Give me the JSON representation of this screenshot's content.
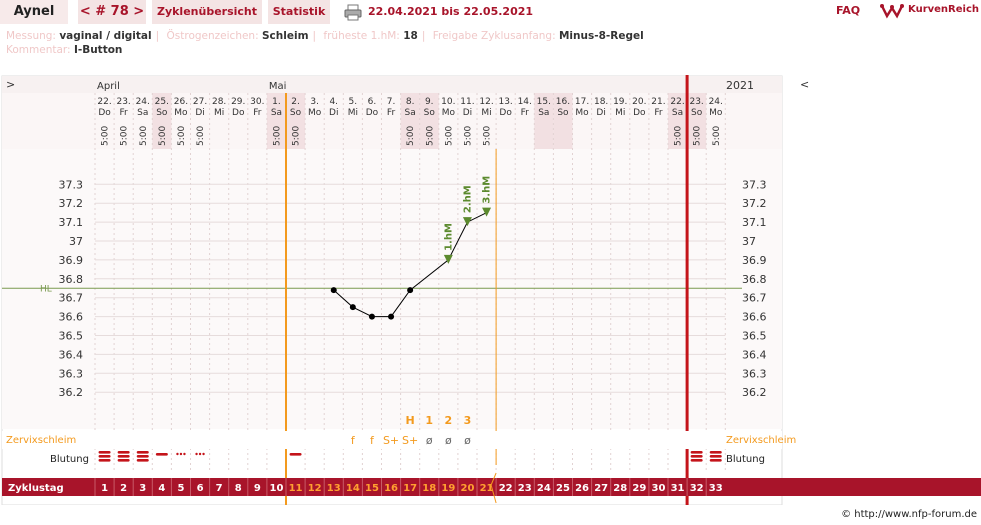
{
  "user": "Aynel",
  "cycle_number": "< # 78 >",
  "nav": {
    "overview": "Zyklenübersicht",
    "stats": "Statistik"
  },
  "date_range": "22.04.2021 bis 22.05.2021",
  "faq": "FAQ",
  "brand": "KurvenReich",
  "info": {
    "messung_label": "Messung:",
    "messung": "vaginal / digital",
    "oestro_label": "Östrogenzeichen:",
    "oestro": "Schleim",
    "hm_label": "früheste 1.hM:",
    "hm": "18",
    "freigabe_label": "Freigabe Zyklusanfang:",
    "freigabe": "Minus-8-Regel",
    "kommentar_label": "Kommentar:",
    "kommentar": "I-Button"
  },
  "chart_data": {
    "type": "line",
    "corner_left": ">",
    "corner_right": "<",
    "year": "2021",
    "month_labels": [
      {
        "label": "April",
        "day_index": 0
      },
      {
        "label": "Mai",
        "day_index": 9
      }
    ],
    "dates": [
      "22.",
      "23.",
      "24.",
      "25.",
      "26.",
      "27.",
      "28.",
      "29.",
      "30.",
      "1.",
      "2.",
      "3.",
      "4.",
      "5.",
      "6.",
      "7.",
      "8.",
      "9.",
      "10.",
      "11.",
      "12.",
      "13.",
      "14.",
      "15.",
      "16.",
      "17.",
      "18.",
      "19.",
      "20.",
      "21.",
      "22.",
      "23.",
      "24."
    ],
    "weekdays": [
      "Do",
      "Fr",
      "Sa",
      "So",
      "Mo",
      "Di",
      "Mi",
      "Do",
      "Fr",
      "Sa",
      "So",
      "Mo",
      "Di",
      "Mi",
      "Do",
      "Fr",
      "Sa",
      "So",
      "Mo",
      "Di",
      "Mi",
      "Do",
      "Fr",
      "Sa",
      "So",
      "Mo",
      "Di",
      "Mi",
      "Do",
      "Fr",
      "Sa",
      "So",
      "Mo"
    ],
    "times": [
      "5:00",
      "5:00",
      "5:00",
      "5:00",
      "5:00",
      "5:00",
      "",
      "",
      "",
      "5:00",
      "5:00",
      "",
      "",
      "",
      "",
      "",
      "5:00",
      "5:00",
      "5:00",
      "5:00",
      "5:00",
      "",
      "",
      "",
      "",
      "",
      "",
      "",
      "",
      "",
      "5:00",
      "5:00",
      "5:00"
    ],
    "cycle_days": [
      "1",
      "2",
      "3",
      "4",
      "5",
      "6",
      "7",
      "8",
      "9",
      "10",
      "11",
      "12",
      "13",
      "14",
      "15",
      "16",
      "17",
      "18",
      "19",
      "20",
      "21",
      "22",
      "23",
      "24",
      "25",
      "26",
      "27",
      "28",
      "29",
      "30",
      "31",
      "32",
      "33"
    ],
    "y_ticks": [
      "37.3",
      "37.2",
      "37.1",
      "37",
      "36.9",
      "36.8",
      "36.7",
      "36.6",
      "36.5",
      "36.4",
      "36.3",
      "36.2"
    ],
    "ylim": [
      36.2,
      37.3
    ],
    "temperatures": [
      {
        "cycle_day": 13,
        "value": 36.74
      },
      {
        "cycle_day": 14,
        "value": 36.65
      },
      {
        "cycle_day": 15,
        "value": 36.6
      },
      {
        "cycle_day": 16,
        "value": 36.6
      },
      {
        "cycle_day": 17,
        "value": 36.74
      },
      {
        "cycle_day": 19,
        "value": 36.9
      },
      {
        "cycle_day": 20,
        "value": 37.1
      },
      {
        "cycle_day": 21,
        "value": 37.15
      }
    ],
    "hm_markers": [
      {
        "cycle_day": 19,
        "label": "1.hM"
      },
      {
        "cycle_day": 20,
        "label": "2.hM"
      },
      {
        "cycle_day": 21,
        "label": "3.hM"
      }
    ],
    "hl": {
      "label": "HL",
      "value": 36.75
    },
    "eval_row": [
      {
        "cycle_day": 17,
        "label": "H"
      },
      {
        "cycle_day": 18,
        "label": "1"
      },
      {
        "cycle_day": 19,
        "label": "2"
      },
      {
        "cycle_day": 20,
        "label": "3"
      }
    ],
    "mucus": {
      "label": "Zervixschleim",
      "entries": [
        {
          "cycle_day": 14,
          "label": "f"
        },
        {
          "cycle_day": 15,
          "label": "f"
        },
        {
          "cycle_day": 16,
          "label": "S+"
        },
        {
          "cycle_day": 17,
          "label": "S+"
        },
        {
          "cycle_day": 18,
          "label": "ø"
        },
        {
          "cycle_day": 19,
          "label": "ø"
        },
        {
          "cycle_day": 20,
          "label": "ø"
        }
      ]
    },
    "bleeding": {
      "label": "Blutung",
      "entries": [
        {
          "cycle_day": 1,
          "strength": "strong"
        },
        {
          "cycle_day": 2,
          "strength": "strong"
        },
        {
          "cycle_day": 3,
          "strength": "strong"
        },
        {
          "cycle_day": 4,
          "strength": "light"
        },
        {
          "cycle_day": 5,
          "strength": "spotting"
        },
        {
          "cycle_day": 6,
          "strength": "spotting"
        },
        {
          "cycle_day": 11,
          "strength": "light"
        },
        {
          "cycle_day": 32,
          "strength": "strong"
        },
        {
          "cycle_day": 33,
          "strength": "strong"
        }
      ]
    },
    "cycle_row_label": "Zyklustag",
    "shaded_day_indices": [
      3,
      9,
      10,
      16,
      17,
      23,
      24,
      30,
      31
    ],
    "orange_line_after_day": 10,
    "cycle_end_after_day": 31,
    "colors": {
      "accent": "#a8142a",
      "orange": "#f39a1e",
      "temp": "#000000",
      "hm": "#5c8a2e",
      "hl": "#7a9a50"
    }
  },
  "copyright": "© http://www.nfp-forum.de"
}
